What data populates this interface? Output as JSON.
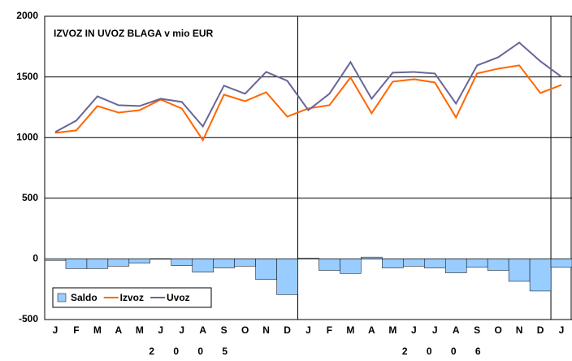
{
  "chart_data": {
    "type": "bar-line",
    "title": "IZVOZ IN UVOZ BLAGA v mio EUR",
    "categories": [
      "J",
      "F",
      "M",
      "A",
      "M",
      "J",
      "J",
      "A",
      "S",
      "O",
      "N",
      "D",
      "J",
      "F",
      "M",
      "A",
      "M",
      "J",
      "J",
      "A",
      "S",
      "O",
      "N",
      "D",
      "J"
    ],
    "year_labels": [
      "2 0 0 5",
      "2 0 0 6"
    ],
    "series": [
      {
        "name": "Saldo",
        "type": "bar",
        "color": "#99ccff",
        "values": [
          -12,
          -80,
          -80,
          -60,
          -35,
          -3,
          -55,
          -110,
          -75,
          -60,
          -170,
          -295,
          5,
          -95,
          -120,
          15,
          -75,
          -60,
          -75,
          -115,
          -70,
          -95,
          -185,
          -265,
          -70
        ]
      },
      {
        "name": "Izvoz",
        "type": "line",
        "color": "#ff6600",
        "values": [
          1039,
          1059,
          1260,
          1206,
          1226,
          1313,
          1240,
          979,
          1354,
          1300,
          1374,
          1173,
          1240,
          1267,
          1495,
          1200,
          1461,
          1481,
          1454,
          1166,
          1528,
          1568,
          1595,
          1367,
          1434
        ]
      },
      {
        "name": "Uvoz",
        "type": "line",
        "color": "#666699",
        "values": [
          1046,
          1140,
          1340,
          1267,
          1260,
          1320,
          1294,
          1092,
          1428,
          1361,
          1541,
          1468,
          1226,
          1361,
          1622,
          1320,
          1535,
          1541,
          1528,
          1280,
          1595,
          1662,
          1783,
          1629,
          1501
        ]
      }
    ],
    "ylim": [
      -500,
      2000
    ],
    "yticks": [
      -500,
      0,
      500,
      1000,
      1500,
      2000
    ],
    "grid": true,
    "legend": "lower left"
  }
}
